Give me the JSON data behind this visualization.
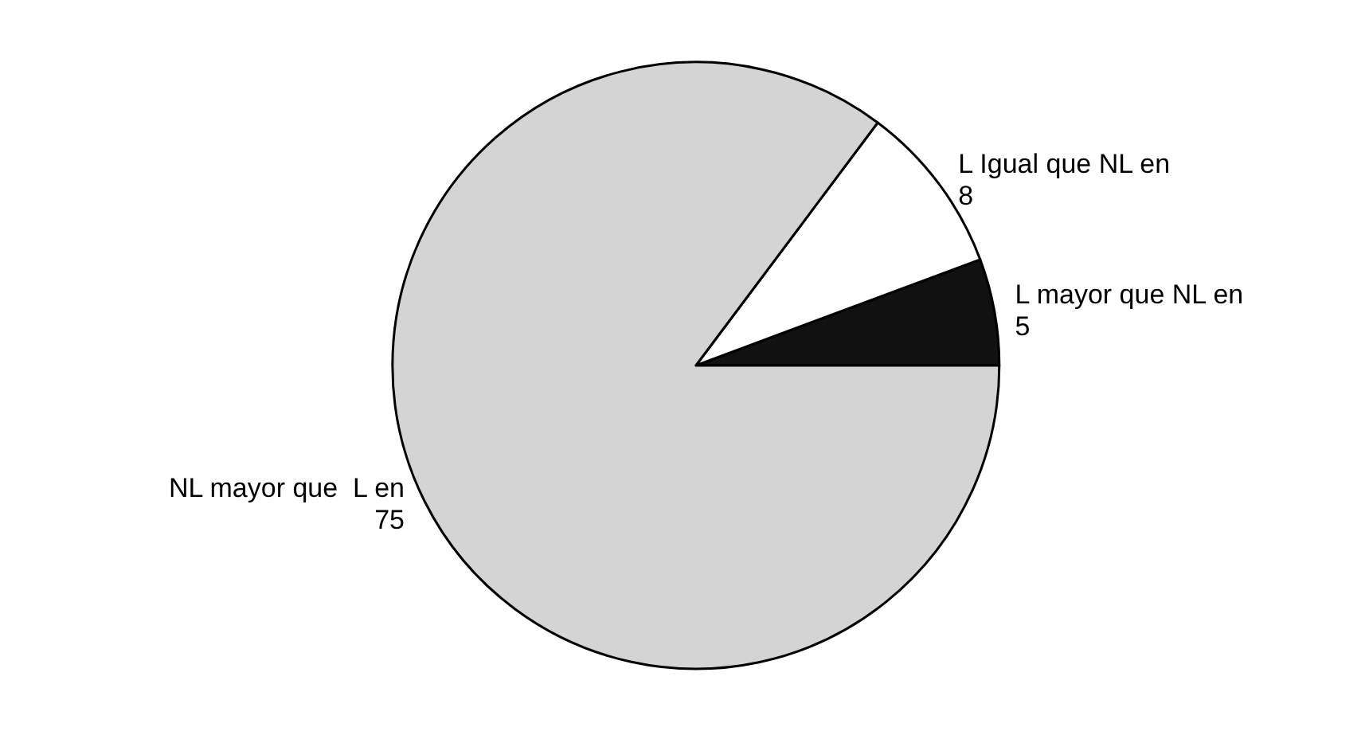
{
  "chart_data": {
    "type": "pie",
    "categories": [
      "L mayor que NL en",
      "L Igual que NL en",
      "NL mayor que  L en"
    ],
    "values": [
      5,
      8,
      75
    ],
    "colors": [
      "#111111",
      "#ffffff",
      "#d4d4d4"
    ],
    "data_labels": true
  }
}
